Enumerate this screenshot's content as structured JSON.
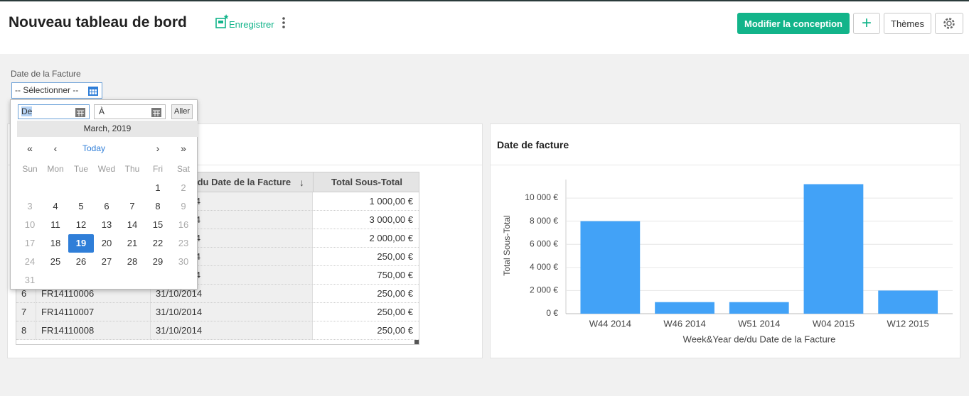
{
  "header": {
    "title": "Nouveau tableau de bord",
    "save": "Enregistrer",
    "design_button": "Modifier la conception",
    "add_button": "+",
    "themes_button": "Thèmes"
  },
  "filter": {
    "label": "Date de la Facture",
    "select": "-- Sélectionner --",
    "from": "De",
    "to": "À",
    "go": "Aller"
  },
  "calendar": {
    "month": "March, 2019",
    "nav": [
      "«",
      "‹",
      "Today",
      "›",
      "»"
    ],
    "weekdays": [
      "Sun",
      "Mon",
      "Tue",
      "Wed",
      "Thu",
      "Fri",
      "Sat"
    ],
    "weeks": [
      [
        null,
        null,
        null,
        null,
        null,
        1,
        2
      ],
      [
        3,
        4,
        5,
        6,
        7,
        8,
        9
      ],
      [
        10,
        11,
        12,
        13,
        14,
        15,
        16
      ],
      [
        17,
        18,
        19,
        20,
        21,
        22,
        23
      ],
      [
        24,
        25,
        26,
        27,
        28,
        29,
        30
      ],
      [
        31,
        null,
        null,
        null,
        null,
        null,
        null
      ]
    ],
    "selected": 19
  },
  "table": {
    "columns": [
      "/du Date de la Facture",
      "Total Sous-Total"
    ],
    "rows": [
      {
        "date": "4",
        "total": "1 000,00 €"
      },
      {
        "date": "4",
        "total": "3 000,00 €"
      },
      {
        "date": "4",
        "total": "2 000,00 €"
      },
      {
        "date": "4",
        "total": "250,00 €"
      },
      {
        "date": "4",
        "total": "750,00 €"
      },
      {
        "num": "6",
        "invoice": "FR14110006",
        "date": "31/10/2014",
        "total": "250,00 €"
      },
      {
        "num": "7",
        "invoice": "FR14110007",
        "date": "31/10/2014",
        "total": "250,00 €"
      },
      {
        "num": "8",
        "invoice": "FR14110008",
        "date": "31/10/2014",
        "total": "250,00 €"
      }
    ]
  },
  "chart_data": {
    "type": "bar",
    "title": "Date de facture",
    "x_label": "Week&Year de/du Date de la Facture",
    "y_label": "Total Sous-Total",
    "categories": [
      "W44 2014",
      "W46 2014",
      "W51 2014",
      "W04 2015",
      "W12 2015"
    ],
    "values": [
      8000,
      1000,
      1000,
      11200,
      2000
    ],
    "color": "#42a2f7",
    "ylim": [
      0,
      11600
    ],
    "yticks": [
      {
        "value": 0,
        "label": "0 €"
      },
      {
        "value": 2000,
        "label": "2 000 €"
      },
      {
        "value": 4000,
        "label": "4 000 €"
      },
      {
        "value": 6000,
        "label": "6 000 €"
      },
      {
        "value": 8000,
        "label": "8 000 €"
      },
      {
        "value": 10000,
        "label": "10 000 €"
      }
    ],
    "grid": true
  }
}
